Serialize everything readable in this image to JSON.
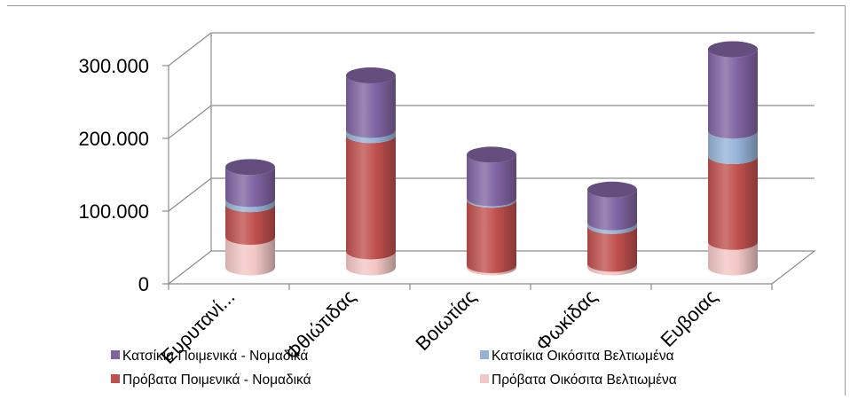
{
  "chart_data": {
    "type": "bar",
    "stacked": true,
    "three_d": true,
    "categories": [
      "Ευρυτανί...",
      "Φθιώτιδας",
      "Βοιωτίας",
      "Φωκίδας",
      "Ευβοιας"
    ],
    "series": [
      {
        "name": "Πρόβατα Οικόσιτα Βελτιωμένα",
        "color": "#f2c7c5",
        "values": [
          42000,
          22000,
          3000,
          5000,
          35000
        ]
      },
      {
        "name": "Πρόβατα Ποιμενικά - Νομαδικά",
        "color": "#c0504d",
        "values": [
          45000,
          160000,
          90000,
          52000,
          118000
        ]
      },
      {
        "name": "Κατσίκια Οικόσιτα Βελτιωμένα",
        "color": "#95b3d7",
        "values": [
          7000,
          7000,
          2000,
          5000,
          35000
        ]
      },
      {
        "name": "Κατσίκια Ποιμενικά - Νομαδικά",
        "color": "#8064a2",
        "values": [
          44000,
          75000,
          60000,
          45000,
          112000
        ]
      }
    ],
    "ytick_labels": [
      "0",
      "100.000",
      "200.000",
      "300.000"
    ],
    "yticks": [
      0,
      100000,
      200000,
      300000
    ],
    "ylim": [
      0,
      300000
    ],
    "grid": true,
    "legend_position": "bottom"
  }
}
